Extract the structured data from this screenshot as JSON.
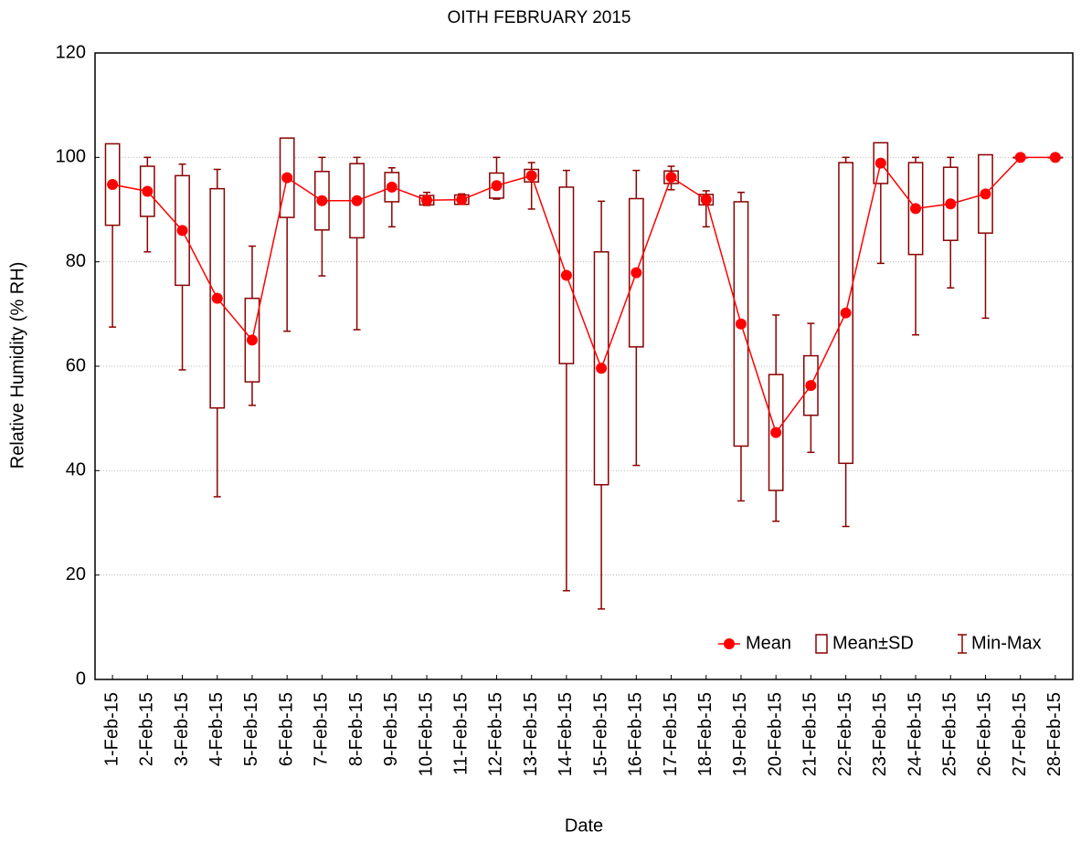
{
  "chart_data": {
    "type": "box",
    "title": "OITH FEBRUARY 2015",
    "xlabel": "Date",
    "ylabel": "Relative Humidity (% RH)",
    "categories": [
      "1-Feb-15",
      "2-Feb-15",
      "3-Feb-15",
      "4-Feb-15",
      "5-Feb-15",
      "6-Feb-15",
      "7-Feb-15",
      "8-Feb-15",
      "9-Feb-15",
      "10-Feb-15",
      "11-Feb-15",
      "12-Feb-15",
      "13-Feb-15",
      "14-Feb-15",
      "15-Feb-15",
      "16-Feb-15",
      "17-Feb-15",
      "18-Feb-15",
      "19-Feb-15",
      "20-Feb-15",
      "21-Feb-15",
      "22-Feb-15",
      "23-Feb-15",
      "24-Feb-15",
      "25-Feb-15",
      "26-Feb-15",
      "27-Feb-15",
      "28-Feb-15"
    ],
    "series": [
      {
        "name": "Mean",
        "color": "#ff0000",
        "values": [
          94.8,
          93.5,
          86,
          73,
          65,
          96.1,
          91.7,
          91.7,
          94.3,
          91.8,
          91.9,
          94.6,
          96.5,
          77.4,
          59.6,
          77.9,
          96.2,
          91.9,
          68.1,
          47.3,
          56.3,
          70.2,
          98.9,
          90.2,
          91.1,
          93,
          100,
          100
        ]
      },
      {
        "name": "Mean±SD",
        "color": "#8b0000",
        "values": [
          7.8,
          4.8,
          10.5,
          21,
          8,
          7.6,
          5.6,
          7.1,
          2.8,
          0.9,
          0.9,
          2.4,
          1.2,
          16.9,
          22.3,
          14.2,
          1.2,
          1,
          23.4,
          11.1,
          5.7,
          28.8,
          3.9,
          8.8,
          7,
          7.5,
          0,
          0
        ]
      },
      {
        "name": "Min-Max",
        "color": "#8b0000",
        "min": [
          67.5,
          81.9,
          59.3,
          35,
          52.5,
          66.7,
          77.3,
          67,
          86.7,
          90.8,
          91,
          92,
          90.1,
          17,
          13.5,
          41,
          93.8,
          86.7,
          34.2,
          30.3,
          43.5,
          29.3,
          79.7,
          66,
          75,
          69.2,
          100,
          100
        ],
        "max": [
          100,
          100,
          98.7,
          97.7,
          83,
          100,
          100,
          100,
          98,
          93.3,
          93,
          100,
          99,
          97.5,
          91.6,
          97.5,
          98.3,
          93.6,
          93.3,
          69.8,
          68.2,
          100,
          100,
          100,
          100,
          100,
          100,
          100
        ]
      }
    ],
    "ylim": [
      0,
      120
    ],
    "yticks": [
      0,
      20,
      40,
      60,
      80,
      100,
      120
    ],
    "grid": true,
    "legend": "lower right"
  }
}
